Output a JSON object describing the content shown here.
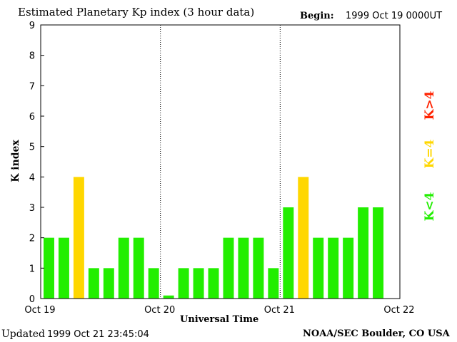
{
  "header": {
    "title": "Estimated Planetary Kp index (3 hour data)",
    "begin_label": "Begin:",
    "begin_value": "1999 Oct 19 0000UT"
  },
  "footer": {
    "updated_label": "Updated",
    "updated_value": "1999 Oct 21 23:45:04",
    "credit": "NOAA/SEC Boulder, CO USA"
  },
  "legend": {
    "items": [
      {
        "label": "K<4",
        "color": "#22ee00"
      },
      {
        "label": "K=4",
        "color": "#ffd700"
      },
      {
        "label": "K>4",
        "color": "#ff2200"
      }
    ]
  },
  "chart_data": {
    "type": "bar",
    "title": "Estimated Planetary Kp index (3 hour data)",
    "xlabel": "Universal Time",
    "ylabel": "K index",
    "ylim": [
      0,
      9
    ],
    "yticks": [
      "0",
      "1",
      "2",
      "3",
      "4",
      "5",
      "6",
      "7",
      "8",
      "9"
    ],
    "xticks": [
      "Oct 19",
      "Oct 20",
      "Oct 21",
      "Oct 22"
    ],
    "interval_hours": 3,
    "values": [
      2,
      2,
      4,
      1,
      1,
      2,
      2,
      1,
      0.1,
      1,
      1,
      1,
      2,
      2,
      2,
      1,
      3,
      4,
      2,
      2,
      2,
      3,
      3
    ],
    "colors": {
      "below4": "#22ee00",
      "equal4": "#ffd700",
      "above4": "#ff2200"
    },
    "grid": false
  }
}
